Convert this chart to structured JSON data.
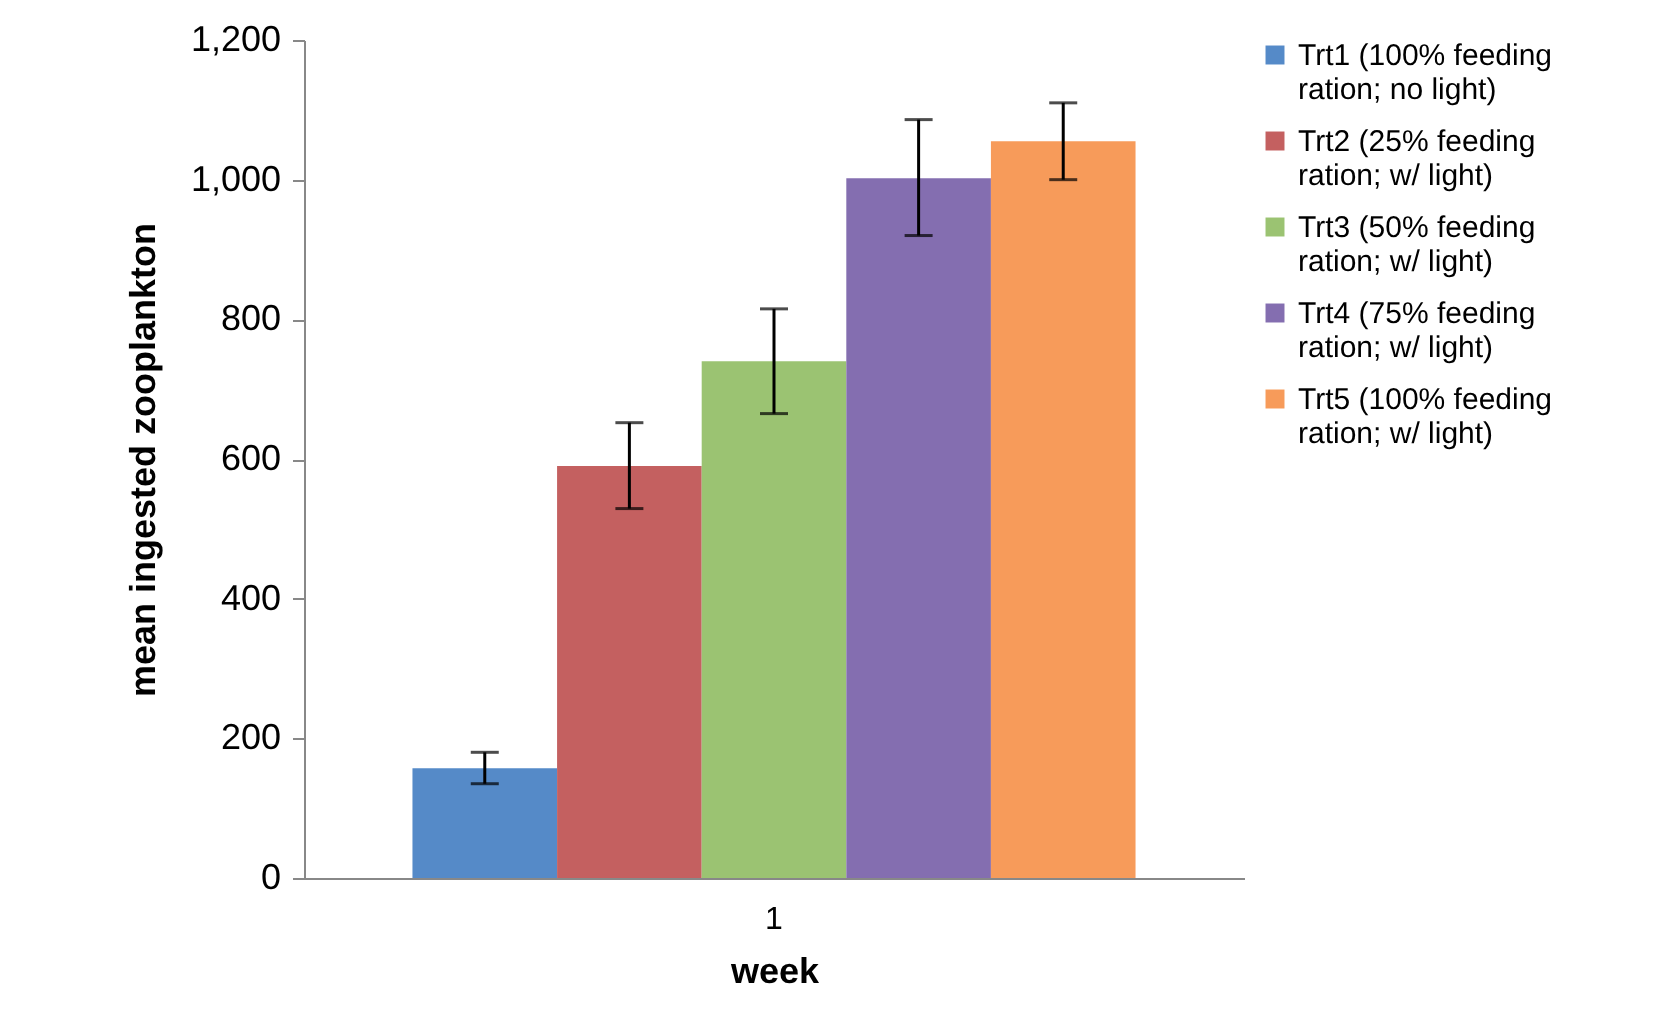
{
  "chart_data": {
    "type": "bar",
    "xlabel": "week",
    "ylabel": "mean ingested zooplankton",
    "categories": [
      "1"
    ],
    "series": [
      {
        "name": "Trt1 (100% feeding ration; no light)",
        "color": "#558ac8",
        "values": [
          157
        ],
        "errors": [
          [
            135,
            180
          ]
        ]
      },
      {
        "name": "Trt2 (25% feeding ration; w/ light)",
        "color": "#c46060",
        "values": [
          590
        ],
        "errors": [
          [
            529,
            652
          ]
        ]
      },
      {
        "name": "Trt3 (50% feeding ration; w/ light)",
        "color": "#9bc372",
        "values": [
          740
        ],
        "errors": [
          [
            665,
            815
          ]
        ]
      },
      {
        "name": "Trt4 (75% feeding ration; w/ light)",
        "color": "#846eb0",
        "values": [
          1002
        ],
        "errors": [
          [
            920,
            1086
          ]
        ]
      },
      {
        "name": "Trt5 (100% feeding ration; w/ light)",
        "color": "#f79b5a",
        "values": [
          1055
        ],
        "errors": [
          [
            1000,
            1110
          ]
        ]
      }
    ],
    "ylim": [
      0,
      1200
    ],
    "yticks": [
      0,
      200,
      400,
      600,
      800,
      {
        "value": 1000,
        "label": "1,000"
      },
      {
        "value": 1200,
        "label": "1,200"
      }
    ],
    "grid": false,
    "legend": "right"
  }
}
